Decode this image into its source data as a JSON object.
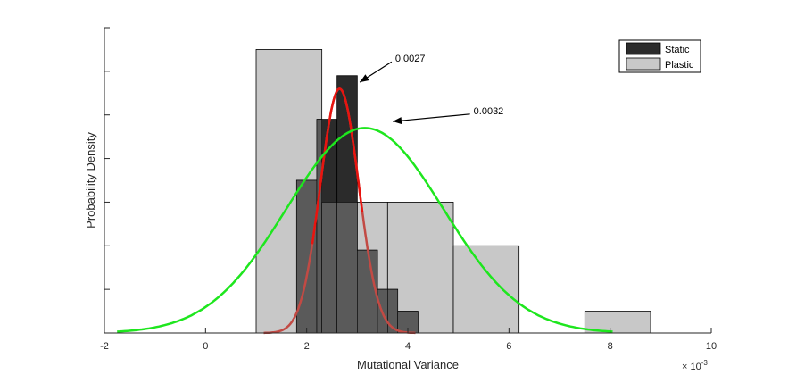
{
  "chart_data": {
    "type": "histogram",
    "title": "",
    "xlabel": "Mutational Variance",
    "ylabel": "Probability Density",
    "x_exponent_label": "× 10",
    "x_exponent_power": "-3",
    "xlim": [
      -2,
      10
    ],
    "x_ticks": [
      -2,
      0,
      2,
      4,
      6,
      8,
      10
    ],
    "ylim": [
      0,
      0.7
    ],
    "y_tick_count": 7,
    "show_y_tick_labels": false,
    "grid": false,
    "legend": {
      "placement": "top-right",
      "entries": [
        {
          "name": "Static",
          "color": "#2b2b2b"
        },
        {
          "name": "Plastic",
          "color": "#c8c8c8"
        }
      ]
    },
    "colors": {
      "static_fill": "#2b2b2b",
      "plastic_fill": "#c8c8c8",
      "overlap_fill": "#5a5a5a",
      "static_fit": "#e8140f",
      "static_fit_tail": "#c24a44",
      "plastic_fit": "#1ee61e"
    },
    "series": [
      {
        "name": "Static",
        "bins": [
          {
            "x0": 1.8,
            "x1": 2.2,
            "y": 0.35
          },
          {
            "x0": 2.2,
            "x1": 2.6,
            "y": 0.49
          },
          {
            "x0": 2.6,
            "x1": 3.0,
            "y": 0.59
          },
          {
            "x0": 3.0,
            "x1": 3.4,
            "y": 0.19
          },
          {
            "x0": 3.4,
            "x1": 3.8,
            "y": 0.1
          },
          {
            "x0": 3.8,
            "x1": 4.2,
            "y": 0.05
          }
        ]
      },
      {
        "name": "Plastic",
        "bins": [
          {
            "x0": 1.0,
            "x1": 2.3,
            "y": 0.65
          },
          {
            "x0": 2.3,
            "x1": 3.6,
            "y": 0.3
          },
          {
            "x0": 3.6,
            "x1": 4.9,
            "y": 0.3
          },
          {
            "x0": 4.9,
            "x1": 6.2,
            "y": 0.2
          },
          {
            "x0": 6.2,
            "x1": 7.5,
            "y": 0.0
          },
          {
            "x0": 7.5,
            "x1": 8.8,
            "y": 0.05
          }
        ]
      }
    ],
    "fits": [
      {
        "name": "Static",
        "type": "normal",
        "mean": 2.65,
        "sd": 0.38,
        "peak": 0.56,
        "x_range": [
          1.15,
          4.15
        ]
      },
      {
        "name": "Plastic",
        "type": "normal",
        "mean": 3.15,
        "sd": 1.55,
        "peak": 0.47,
        "x_range": [
          -1.75,
          8.05
        ]
      }
    ],
    "annotations": [
      {
        "text": "0.0027",
        "arrow_tip": [
          3.05,
          0.575
        ],
        "text_anchor": [
          3.75,
          0.63
        ]
      },
      {
        "text": "0.0032",
        "arrow_tip": [
          3.7,
          0.485
        ],
        "text_anchor": [
          5.3,
          0.51
        ]
      }
    ]
  }
}
